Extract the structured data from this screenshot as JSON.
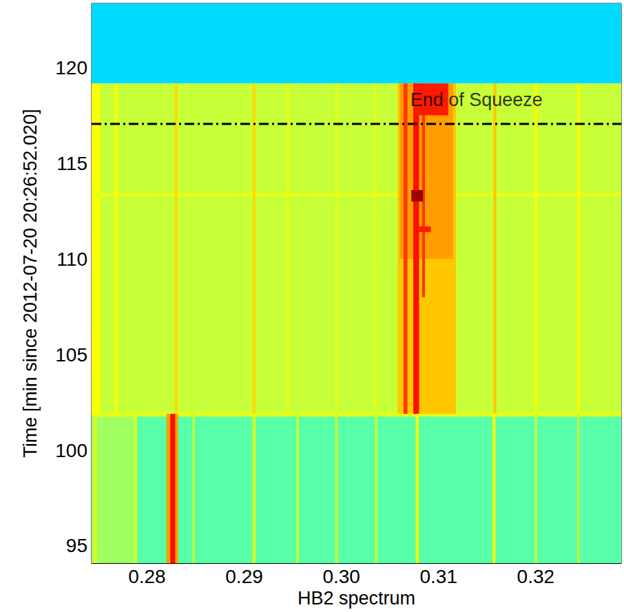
{
  "chart_data": {
    "type": "heatmap",
    "x_label": "HB2 spectrum",
    "y_label": "Time [min since 2012-07-20 20:26:52.020]",
    "xlim": [
      0.2743,
      0.3288
    ],
    "xticks": [
      0.28,
      0.29,
      {
        "value": 0.3,
        "label": "0.30"
      },
      0.31,
      0.32
    ],
    "ylim": [
      94.1,
      123.35
    ],
    "yticks": [
      95,
      100,
      105,
      110,
      115,
      120
    ],
    "tick_labels": true,
    "grid": false,
    "value_range": [
      0,
      1
    ],
    "cells": [
      [
        0.2743,
        0.3288,
        119.17,
        123.35,
        0.34
      ],
      [
        0.2743,
        0.3288,
        101.9,
        119.17,
        0.57
      ],
      [
        0.2743,
        0.3288,
        94.1,
        101.9,
        0.46
      ],
      [
        0.2743,
        0.279,
        94.1,
        101.9,
        0.53
      ],
      [
        0.2743,
        0.2752,
        101.9,
        119.17,
        0.62
      ],
      [
        0.2743,
        0.3288,
        113.25,
        113.45,
        0.6
      ],
      [
        0.2743,
        0.3288,
        101.75,
        101.95,
        0.6
      ],
      [
        0.27665,
        0.27695,
        101.9,
        119.17,
        0.62
      ],
      [
        0.28285,
        0.28315,
        101.9,
        119.17,
        0.66
      ],
      [
        0.29085,
        0.29115,
        101.9,
        119.17,
        0.66
      ],
      [
        0.29435,
        0.29465,
        101.9,
        119.17,
        0.6
      ],
      [
        0.29935,
        0.29965,
        101.9,
        119.17,
        0.6
      ],
      [
        0.30335,
        0.30365,
        101.9,
        119.17,
        0.6
      ],
      [
        0.31565,
        0.31595,
        101.9,
        119.17,
        0.68
      ],
      [
        0.31985,
        0.32015,
        101.9,
        119.17,
        0.62
      ],
      [
        0.32425,
        0.32455,
        101.9,
        119.17,
        0.63
      ],
      [
        0.3058,
        0.3118,
        101.9,
        119.17,
        0.68
      ],
      [
        0.306,
        0.3115,
        110,
        119.17,
        0.72
      ],
      [
        0.3064,
        0.3068,
        101.9,
        119.17,
        0.82
      ],
      [
        0.3074,
        0.308,
        101.9,
        119.17,
        0.86
      ],
      [
        0.3083,
        0.3086,
        108,
        119.17,
        0.82
      ],
      [
        0.3075,
        0.311,
        117.5,
        119.17,
        0.85
      ],
      [
        0.308,
        0.3092,
        111.4,
        111.7,
        0.85
      ],
      [
        0.3072,
        0.3084,
        113.0,
        113.6,
        0.97
      ],
      [
        0.27455,
        0.27485,
        94.1,
        101.9,
        0.6
      ],
      [
        0.27865,
        0.27895,
        94.1,
        101.9,
        0.58
      ],
      [
        0.282,
        0.2832,
        94.1,
        101.9,
        0.72
      ],
      [
        0.2824,
        0.2829,
        94.1,
        101.9,
        0.86
      ],
      [
        0.28465,
        0.28495,
        94.1,
        101.9,
        0.55
      ],
      [
        0.29085,
        0.29115,
        94.1,
        101.9,
        0.6
      ],
      [
        0.29535,
        0.29565,
        94.1,
        101.9,
        0.56
      ],
      [
        0.29935,
        0.29965,
        94.1,
        101.9,
        0.56
      ],
      [
        0.30345,
        0.30375,
        94.1,
        101.9,
        0.56
      ],
      [
        0.30765,
        0.30795,
        94.1,
        101.9,
        0.62
      ],
      [
        0.31555,
        0.31585,
        94.1,
        101.9,
        0.62
      ],
      [
        0.31985,
        0.32015,
        94.1,
        101.9,
        0.55
      ],
      [
        0.32425,
        0.32455,
        94.1,
        101.9,
        0.55
      ]
    ],
    "annotations": [
      {
        "text": "End of Squeeze",
        "x": 0.3139,
        "y": 118.3,
        "line_y": 117.05,
        "line_style": "dashdot",
        "color": "#000000"
      }
    ]
  }
}
